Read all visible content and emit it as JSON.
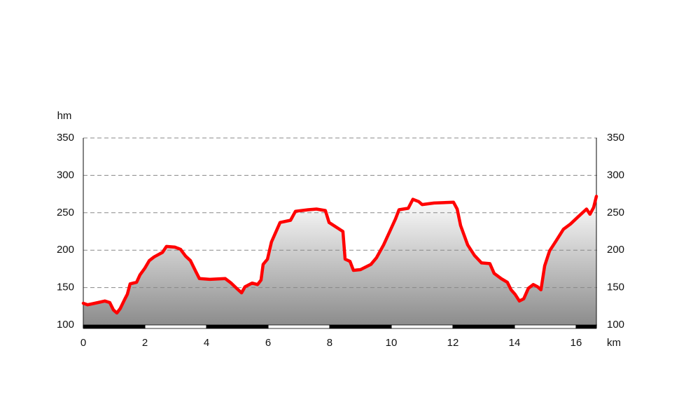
{
  "chart_data": {
    "type": "area",
    "y_label": "hm",
    "x_label": "km",
    "color": "#ff0000",
    "grid": true,
    "xlim": [
      0,
      16.66
    ],
    "xticks": [
      0,
      2,
      4,
      6,
      8,
      10,
      12,
      14,
      16
    ],
    "ylim": [
      100,
      350
    ],
    "yticks": [
      100,
      150,
      200,
      250,
      300,
      350
    ],
    "y2lim": [
      100,
      350
    ],
    "y2ticks": [
      100,
      150,
      200,
      250,
      300,
      350
    ],
    "x": [
      0,
      0.14,
      0.48,
      0.7,
      0.86,
      0.98,
      1.09,
      1.2,
      1.34,
      1.43,
      1.52,
      1.73,
      1.84,
      2.0,
      2.14,
      2.3,
      2.57,
      2.7,
      2.98,
      3.16,
      3.32,
      3.48,
      3.66,
      3.77,
      4.11,
      4.61,
      4.8,
      4.98,
      5.14,
      5.25,
      5.48,
      5.66,
      5.77,
      5.84,
      5.98,
      6.11,
      6.39,
      6.73,
      6.89,
      7.3,
      7.57,
      7.86,
      7.98,
      8.43,
      8.5,
      8.66,
      8.77,
      9.0,
      9.34,
      9.52,
      9.75,
      9.95,
      10.14,
      10.25,
      10.55,
      10.7,
      10.89,
      11.0,
      11.39,
      12.02,
      12.14,
      12.25,
      12.48,
      12.7,
      12.93,
      13.2,
      13.34,
      13.57,
      13.77,
      13.89,
      14.02,
      14.16,
      14.3,
      14.45,
      14.61,
      14.75,
      14.86,
      14.98,
      15.14,
      15.36,
      15.59,
      15.82,
      16.05,
      16.34,
      16.45,
      16.57,
      16.66
    ],
    "values": [
      129,
      127,
      130,
      132,
      130,
      120,
      116,
      122,
      134,
      141,
      155,
      157,
      167,
      176,
      186,
      191,
      197,
      205,
      204,
      201,
      192,
      186,
      171,
      162,
      161,
      162,
      156,
      149,
      143,
      151,
      156,
      154,
      160,
      181,
      188,
      211,
      237,
      240,
      252,
      254,
      255,
      253,
      237,
      225,
      188,
      185,
      173,
      174,
      181,
      190,
      207,
      225,
      242,
      254,
      256,
      268,
      265,
      261,
      263,
      264,
      255,
      233,
      207,
      193,
      183,
      182,
      169,
      162,
      157,
      147,
      141,
      132,
      135,
      149,
      154,
      151,
      147,
      179,
      199,
      213,
      228,
      235,
      244,
      255,
      248,
      257,
      272
    ]
  }
}
